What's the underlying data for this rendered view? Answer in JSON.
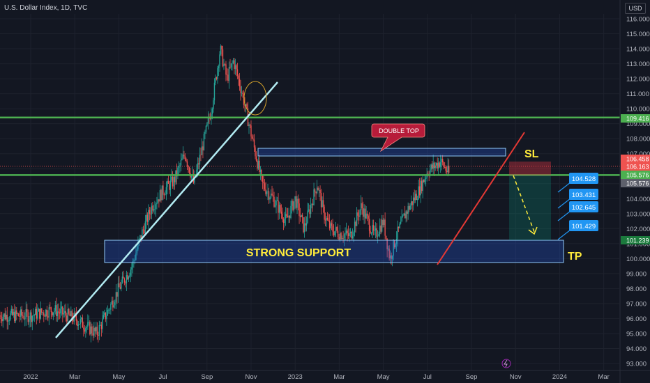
{
  "header": {
    "title": "U.S. Dollar Index, 1D, TVC",
    "currency": "USD"
  },
  "colors": {
    "background": "#131722",
    "up": "#26a69a",
    "down": "#ef5350",
    "green_line": "#4caf50",
    "trend_line": "#b2ebf2",
    "red_trend": "#e53935",
    "box_fill": "#2962ff",
    "label_blue": "#2196f3",
    "annotation_yellow": "#ffeb3b"
  },
  "chart_data": {
    "type": "candlestick",
    "y_ticks": [
      "116.000",
      "115.000",
      "114.000",
      "113.000",
      "112.000",
      "111.000",
      "110.000",
      "109.000",
      "108.000",
      "107.000",
      "106.000",
      "105.000",
      "104.000",
      "103.000",
      "102.000",
      "101.000",
      "100.000",
      "99.000",
      "98.000",
      "97.000",
      "96.000",
      "95.000",
      "94.000",
      "93.000"
    ],
    "ylim": [
      92.8,
      116.6
    ],
    "x_ticks": [
      "2022",
      "Mar",
      "May",
      "Jul",
      "Sep",
      "Nov",
      "2023",
      "Mar",
      "May",
      "Jul",
      "Sep",
      "Nov",
      "2024",
      "Mar"
    ],
    "price_path": [
      [
        0,
        96.2
      ],
      [
        1,
        96.6
      ],
      [
        2,
        96.0
      ],
      [
        3,
        95.0
      ],
      [
        3.5,
        96.5
      ],
      [
        4,
        98.0
      ],
      [
        4.6,
        99.5
      ],
      [
        5,
        101.5
      ],
      [
        5.5,
        103.5
      ],
      [
        6,
        104.5
      ],
      [
        6.5,
        105.2
      ],
      [
        7,
        107.0
      ],
      [
        7.4,
        105.0
      ],
      [
        7.8,
        107.5
      ],
      [
        8.2,
        110.0
      ],
      [
        8.6,
        114.0
      ],
      [
        8.9,
        112.0
      ],
      [
        9.2,
        113.2
      ],
      [
        9.6,
        111.0
      ],
      [
        10.2,
        107.0
      ],
      [
        10.5,
        105.0
      ],
      [
        11,
        104.0
      ],
      [
        11.6,
        102.5
      ],
      [
        12,
        104.0
      ],
      [
        12.4,
        102.0
      ],
      [
        13,
        105.0
      ],
      [
        13.3,
        103.0
      ],
      [
        13.6,
        102.0
      ],
      [
        14,
        101.7
      ],
      [
        14.5,
        101.5
      ],
      [
        15,
        103.5
      ],
      [
        15.6,
        101.5
      ],
      [
        16,
        102.5
      ],
      [
        16.3,
        100.0
      ],
      [
        16.6,
        101.5
      ],
      [
        17,
        103.0
      ],
      [
        17.6,
        104.5
      ],
      [
        18,
        105.8
      ],
      [
        18.6,
        106.5
      ],
      [
        19,
        105.6
      ]
    ],
    "annotations": {
      "price_labels": [
        {
          "value": 109.416,
          "text": "109.416",
          "color": "#4caf50"
        },
        {
          "value": 106.458,
          "text": "106.458",
          "color": "#ef5350"
        },
        {
          "value": 106.163,
          "text": "106.163",
          "color": "#ef5350"
        },
        {
          "value": 105.576,
          "text": "105.576",
          "color": "#4caf50"
        },
        {
          "value": 105.576,
          "text": "105.576",
          "color": "#5d606b"
        },
        {
          "value": 101.239,
          "text": "101.239",
          "color": "#1b7a3d"
        }
      ],
      "levels": [
        {
          "value": 109.416,
          "label": "resistance"
        },
        {
          "value": 105.576,
          "label": "support"
        }
      ],
      "target_labels": [
        "104.528",
        "103.431",
        "102.645",
        "101.429"
      ],
      "double_top": "DOUBLE TOP",
      "strong_support": "STRONG SUPPORT",
      "sl": "SL",
      "tp": "TP"
    }
  }
}
